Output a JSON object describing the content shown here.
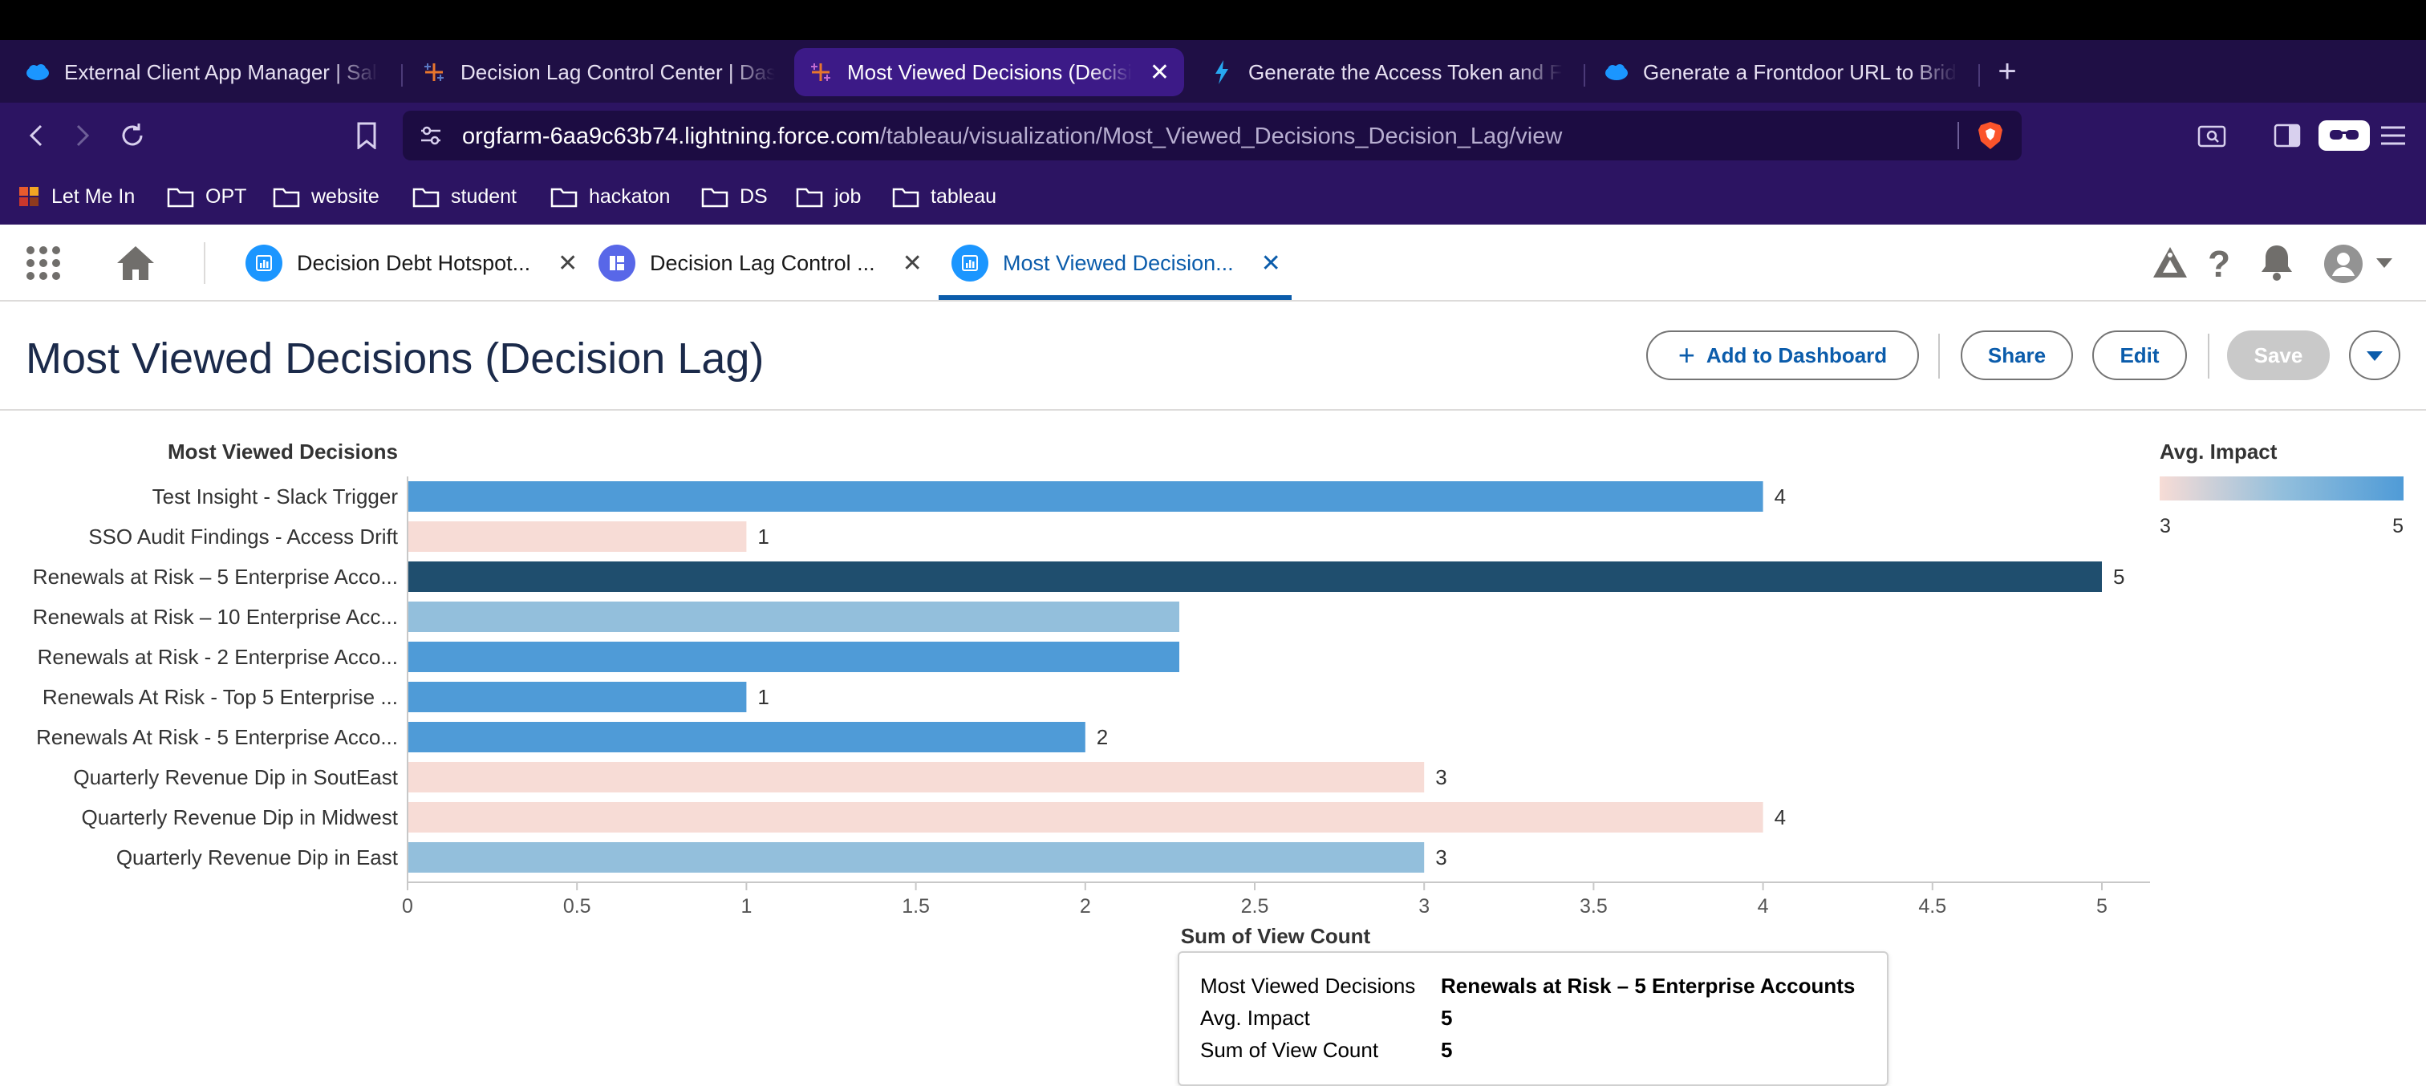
{
  "browser": {
    "tabs": [
      {
        "title": "External Client App Manager | Sale",
        "icon": "salesforce-cloud-icon",
        "active": false
      },
      {
        "title": "Decision Lag Control Center | Dash",
        "icon": "tableau-icon",
        "active": false
      },
      {
        "title": "Most Viewed Decisions (Decisi",
        "icon": "tableau-icon",
        "active": true
      },
      {
        "title": "Generate the Access Token and Fro",
        "icon": "lightning-bolt-icon",
        "active": false
      },
      {
        "title": "Generate a Frontdoor URL to Bridg",
        "icon": "salesforce-cloud-icon",
        "active": false
      }
    ],
    "url_host": "orgfarm-6aa9c63b74.lightning.force.com",
    "url_path": "/tableau/visualization/Most_Viewed_Decisions_Decision_Lag/view",
    "bookmarks": [
      {
        "label": "Let Me In",
        "icon": "app-icon"
      },
      {
        "label": "OPT",
        "icon": "folder-icon"
      },
      {
        "label": "website",
        "icon": "folder-icon"
      },
      {
        "label": "student",
        "icon": "folder-icon"
      },
      {
        "label": "hackaton",
        "icon": "folder-icon"
      },
      {
        "label": "DS",
        "icon": "folder-icon"
      },
      {
        "label": "job",
        "icon": "folder-icon"
      },
      {
        "label": "tableau",
        "icon": "folder-icon"
      }
    ]
  },
  "sf_tabs": [
    {
      "label": "Decision Debt Hotspot...",
      "icon": "chart-icon",
      "active": false
    },
    {
      "label": "Decision Lag Control ...",
      "icon": "dashboard-icon",
      "active": false
    },
    {
      "label": "Most Viewed Decision...",
      "icon": "chart-icon",
      "active": true
    }
  ],
  "page": {
    "title": "Most Viewed Decisions (Decision Lag)",
    "buttons": {
      "add_to_dashboard": "Add to Dashboard",
      "share": "Share",
      "edit": "Edit",
      "save": "Save"
    }
  },
  "colors": {
    "accent": "#0b5cab",
    "bar_low": "#f7dcd6",
    "bar_mid": "#93bfdc",
    "bar_high": "#4f9bd7",
    "bar_highlight": "#1f4e6e"
  },
  "chart_data": {
    "type": "bar",
    "orientation": "horizontal",
    "row_header": "Most Viewed Decisions",
    "categories": [
      "Test Insight - Slack Trigger",
      "SSO Audit Findings - Access Drift",
      "Renewals at Risk – 5 Enterprise Acco...",
      "Renewals at Risk – 10 Enterprise Acc...",
      "Renewals at Risk - 2 Enterprise Acco...",
      "Renewals At Risk - Top 5 Enterprise ...",
      "Renewals At Risk - 5 Enterprise Acco...",
      "Quarterly Revenue Dip in SoutEast",
      "Quarterly Revenue Dip in Midwest",
      "Quarterly Revenue Dip in East"
    ],
    "values": [
      4,
      1,
      5,
      null,
      null,
      1,
      2,
      3,
      4,
      3
    ],
    "data_labels": [
      "4",
      "1",
      "5",
      "",
      "",
      "1",
      "2",
      "3",
      "4",
      "3"
    ],
    "color_metric": "Avg. Impact",
    "color_values": [
      5,
      3,
      5,
      4,
      5,
      5,
      5,
      3,
      3,
      4
    ],
    "highlighted_index": 2,
    "xlabel": "Sum of View Count",
    "x_ticks": [
      "0",
      "0.5",
      "1",
      "1.5",
      "2",
      "2.5",
      "3",
      "3.5",
      "4",
      "4.5",
      "5"
    ],
    "xlim": [
      0,
      5.15
    ],
    "legend": {
      "title": "Avg. Impact",
      "min_label": "3",
      "max_label": "5",
      "placement": "top-right"
    },
    "tooltip": {
      "rows": [
        {
          "key": "Most Viewed Decisions",
          "value": "Renewals at Risk – 5 Enterprise Accounts"
        },
        {
          "key": "Avg. Impact",
          "value": "5"
        },
        {
          "key": "Sum of View Count",
          "value": "5"
        }
      ]
    }
  }
}
